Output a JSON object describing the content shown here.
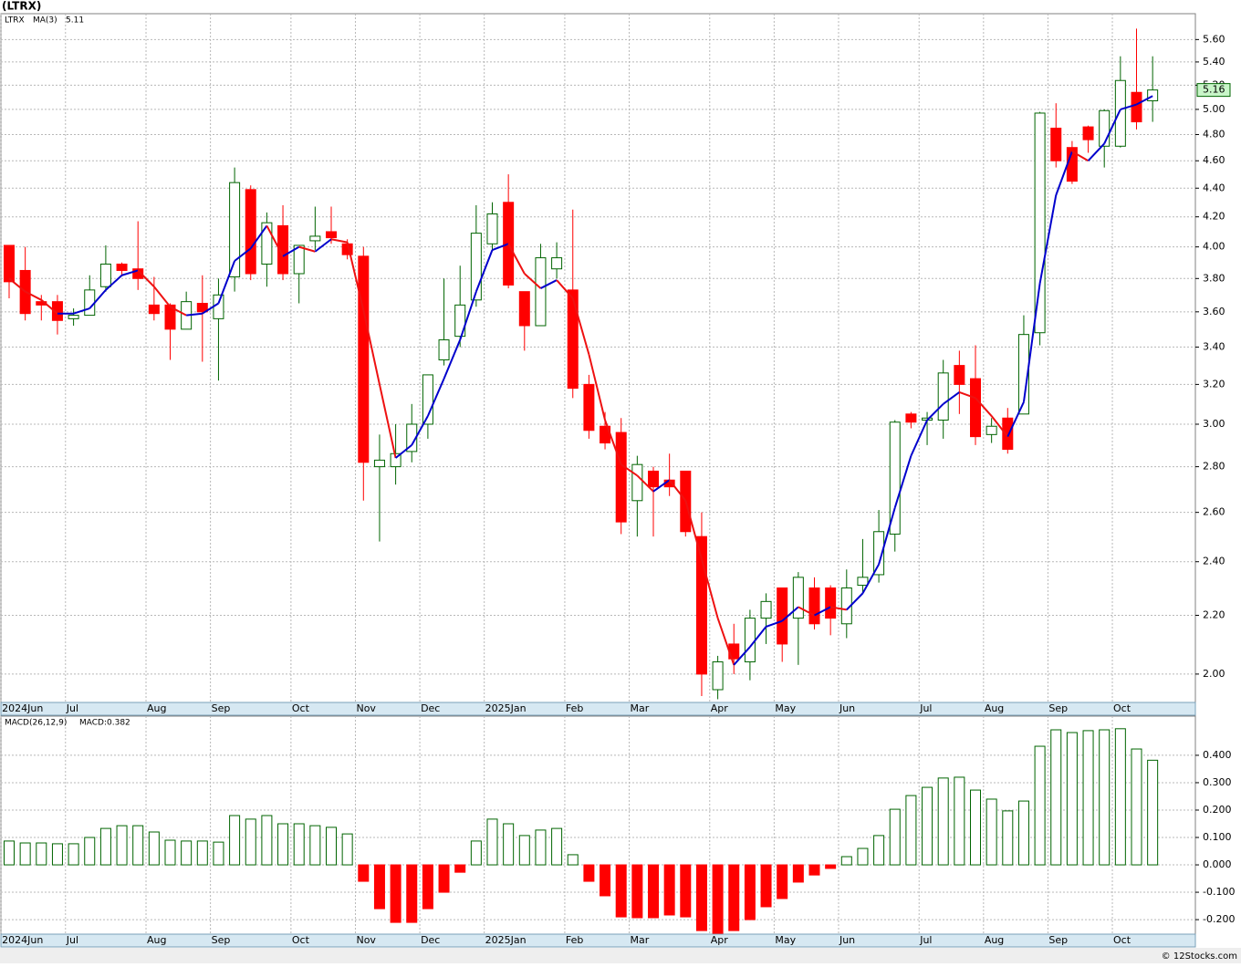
{
  "title": "(LTRX)",
  "footer": "© 12Stocks.com",
  "chart_data": [
    {
      "type": "candlestick",
      "symbol": "LTRX",
      "log": true,
      "grid": true,
      "up_color": "#006400",
      "down_color": "#ff0000",
      "categories": [
        "2024Jun",
        null,
        null,
        null,
        "Jul",
        null,
        null,
        null,
        null,
        "Aug",
        null,
        null,
        null,
        "Sep",
        null,
        null,
        null,
        null,
        "Oct",
        null,
        null,
        null,
        "Nov",
        null,
        null,
        null,
        "Dec",
        null,
        null,
        null,
        "2025Jan",
        null,
        null,
        null,
        null,
        "Feb",
        null,
        null,
        null,
        "Mar",
        null,
        null,
        null,
        null,
        "Apr",
        null,
        null,
        null,
        "May",
        null,
        null,
        null,
        "Jun",
        null,
        null,
        null,
        null,
        "Jul",
        null,
        null,
        null,
        "Aug",
        null,
        null,
        null,
        "Sep",
        null,
        null,
        null,
        "Oct",
        null,
        null
      ],
      "open": [
        4.01,
        3.85,
        3.66,
        3.66,
        3.56,
        3.58,
        3.75,
        3.89,
        3.86,
        3.64,
        3.64,
        3.5,
        3.65,
        3.56,
        3.81,
        4.39,
        3.89,
        4.14,
        3.83,
        4.04,
        4.1,
        4.02,
        3.94,
        2.8,
        2.8,
        2.87,
        3.0,
        3.33,
        3.46,
        3.67,
        4.02,
        4.3,
        3.72,
        3.52,
        3.86,
        3.73,
        3.2,
        2.99,
        2.96,
        2.65,
        2.78,
        2.74,
        2.78,
        2.5,
        1.95,
        2.1,
        2.04,
        2.19,
        2.3,
        2.19,
        2.3,
        2.3,
        2.17,
        2.31,
        2.35,
        2.51,
        3.05,
        3.02,
        3.02,
        3.3,
        3.23,
        2.95,
        3.03,
        3.05,
        3.48,
        4.85,
        4.7,
        4.86,
        4.71,
        4.71,
        5.14,
        5.07
      ],
      "high": [
        4.01,
        4.0,
        3.7,
        3.7,
        3.62,
        3.82,
        4.01,
        3.9,
        4.17,
        3.81,
        3.65,
        3.72,
        3.82,
        3.8,
        4.55,
        4.42,
        4.23,
        4.28,
        4.01,
        4.27,
        4.27,
        4.05,
        4.0,
        2.95,
        3.0,
        3.1,
        3.25,
        3.8,
        3.88,
        4.28,
        4.3,
        4.5,
        3.72,
        4.02,
        4.03,
        4.25,
        3.25,
        3.06,
        3.03,
        2.85,
        2.8,
        2.86,
        2.78,
        2.6,
        2.06,
        2.17,
        2.22,
        2.28,
        2.3,
        2.36,
        2.34,
        2.31,
        2.37,
        2.49,
        2.61,
        3.02,
        3.06,
        3.06,
        3.33,
        3.38,
        3.41,
        3.03,
        3.08,
        3.58,
        4.98,
        5.05,
        4.75,
        4.87,
        5.0,
        5.45,
        5.7,
        5.45
      ],
      "low": [
        3.68,
        3.55,
        3.55,
        3.47,
        3.52,
        3.58,
        3.72,
        3.82,
        3.73,
        3.55,
        3.33,
        3.5,
        3.32,
        3.22,
        3.72,
        3.79,
        3.75,
        3.79,
        3.65,
        3.98,
        4.02,
        3.92,
        2.65,
        2.48,
        2.72,
        2.82,
        2.93,
        3.3,
        3.4,
        3.63,
        3.98,
        3.74,
        3.38,
        3.52,
        3.8,
        3.13,
        2.93,
        2.88,
        2.51,
        2.5,
        2.5,
        2.67,
        2.5,
        1.93,
        1.92,
        2.0,
        1.98,
        2.1,
        2.04,
        2.03,
        2.15,
        2.13,
        2.12,
        2.28,
        2.32,
        2.44,
        2.98,
        2.9,
        2.93,
        3.05,
        2.9,
        2.91,
        2.86,
        3.05,
        3.41,
        4.55,
        4.43,
        4.66,
        4.55,
        4.7,
        4.84,
        4.9
      ],
      "close": [
        3.78,
        3.59,
        3.64,
        3.55,
        3.58,
        3.73,
        3.89,
        3.85,
        3.8,
        3.59,
        3.5,
        3.66,
        3.6,
        3.7,
        4.44,
        3.83,
        4.16,
        3.83,
        4.01,
        4.07,
        4.06,
        3.95,
        2.82,
        2.83,
        2.86,
        3.0,
        3.25,
        3.44,
        3.64,
        4.09,
        4.22,
        3.76,
        3.52,
        3.93,
        3.93,
        3.18,
        2.97,
        2.91,
        2.56,
        2.81,
        2.71,
        2.71,
        2.52,
        2.0,
        2.04,
        2.05,
        2.19,
        2.25,
        2.1,
        2.34,
        2.17,
        2.19,
        2.3,
        2.34,
        2.52,
        3.01,
        3.01,
        3.03,
        3.26,
        3.2,
        2.94,
        2.99,
        2.88,
        3.47,
        4.97,
        4.6,
        4.45,
        4.76,
        4.99,
        5.24,
        4.9,
        5.16
      ],
      "ma": {
        "name": "MA(3)",
        "up_color": "#0000cc",
        "down_color": "#ee1111",
        "values": [
          3.8,
          3.72,
          3.67,
          3.59,
          3.59,
          3.62,
          3.73,
          3.82,
          3.85,
          3.75,
          3.63,
          3.58,
          3.59,
          3.65,
          3.91,
          3.99,
          4.14,
          3.94,
          4.0,
          3.97,
          4.05,
          4.03,
          3.61,
          3.2,
          2.84,
          2.9,
          3.04,
          3.23,
          3.44,
          3.72,
          3.98,
          4.02,
          3.83,
          3.74,
          3.79,
          3.68,
          3.36,
          3.02,
          2.81,
          2.76,
          2.69,
          2.74,
          2.65,
          2.41,
          2.19,
          2.03,
          2.09,
          2.16,
          2.18,
          2.23,
          2.2,
          2.23,
          2.22,
          2.28,
          2.39,
          2.62,
          2.85,
          3.02,
          3.1,
          3.16,
          3.13,
          3.04,
          2.94,
          3.11,
          3.77,
          4.35,
          4.67,
          4.6,
          4.73,
          5.0,
          5.04,
          5.11
        ]
      },
      "ylim": [
        1.91,
        5.84
      ],
      "yticks": [
        {
          "value": 2.0,
          "label": "2.00"
        },
        {
          "value": 2.2,
          "label": "2.20"
        },
        {
          "value": 2.4,
          "label": "2.40"
        },
        {
          "value": 2.6,
          "label": "2.60"
        },
        {
          "value": 2.8,
          "label": "2.80"
        },
        {
          "value": 3.0,
          "label": "3.00"
        },
        {
          "value": 3.2,
          "label": "3.20"
        },
        {
          "value": 3.4,
          "label": "3.40"
        },
        {
          "value": 3.6,
          "label": "3.60"
        },
        {
          "value": 3.8,
          "label": "3.80"
        },
        {
          "value": 4.0,
          "label": "4.00"
        },
        {
          "value": 4.2,
          "label": "4.20"
        },
        {
          "value": 4.4,
          "label": "4.40"
        },
        {
          "value": 4.6,
          "label": "4.60"
        },
        {
          "value": 4.8,
          "label": "4.80"
        },
        {
          "value": 5.0,
          "label": "5.00"
        },
        {
          "value": 5.2,
          "label": "5.20"
        },
        {
          "value": 5.4,
          "label": "5.40"
        },
        {
          "value": 5.6,
          "label": "5.60"
        }
      ]
    },
    {
      "type": "bar",
      "name": "MACD(26,12,9)",
      "current_label": "MACD:0.382",
      "grid": true,
      "up_color": "#006400",
      "down_color": "#ff0000",
      "values": [
        0.087,
        0.08,
        0.08,
        0.077,
        0.077,
        0.1,
        0.133,
        0.143,
        0.143,
        0.12,
        0.09,
        0.087,
        0.087,
        0.083,
        0.18,
        0.167,
        0.18,
        0.15,
        0.15,
        0.143,
        0.137,
        0.113,
        -0.06,
        -0.16,
        -0.21,
        -0.21,
        -0.16,
        -0.1,
        -0.027,
        0.087,
        0.167,
        0.15,
        0.107,
        0.127,
        0.133,
        0.037,
        -0.06,
        -0.113,
        -0.19,
        -0.193,
        -0.193,
        -0.183,
        -0.19,
        -0.24,
        -0.25,
        -0.24,
        -0.2,
        -0.153,
        -0.123,
        -0.063,
        -0.037,
        -0.013,
        0.03,
        0.06,
        0.107,
        0.203,
        0.253,
        0.283,
        0.317,
        0.32,
        0.273,
        0.24,
        0.197,
        0.233,
        0.433,
        0.493,
        0.483,
        0.49,
        0.493,
        0.497,
        0.423,
        0.382
      ],
      "ylim": [
        -0.253,
        0.543
      ],
      "yticks": [
        {
          "value": -0.2,
          "label": "-0.200"
        },
        {
          "value": -0.1,
          "label": "-0.100"
        },
        {
          "value": 0,
          "label": "0.000"
        },
        {
          "value": 0.1,
          "label": "0.100"
        },
        {
          "value": 0.2,
          "label": "0.200"
        },
        {
          "value": 0.3,
          "label": "0.300"
        },
        {
          "value": 0.4,
          "label": "0.400"
        }
      ]
    }
  ]
}
